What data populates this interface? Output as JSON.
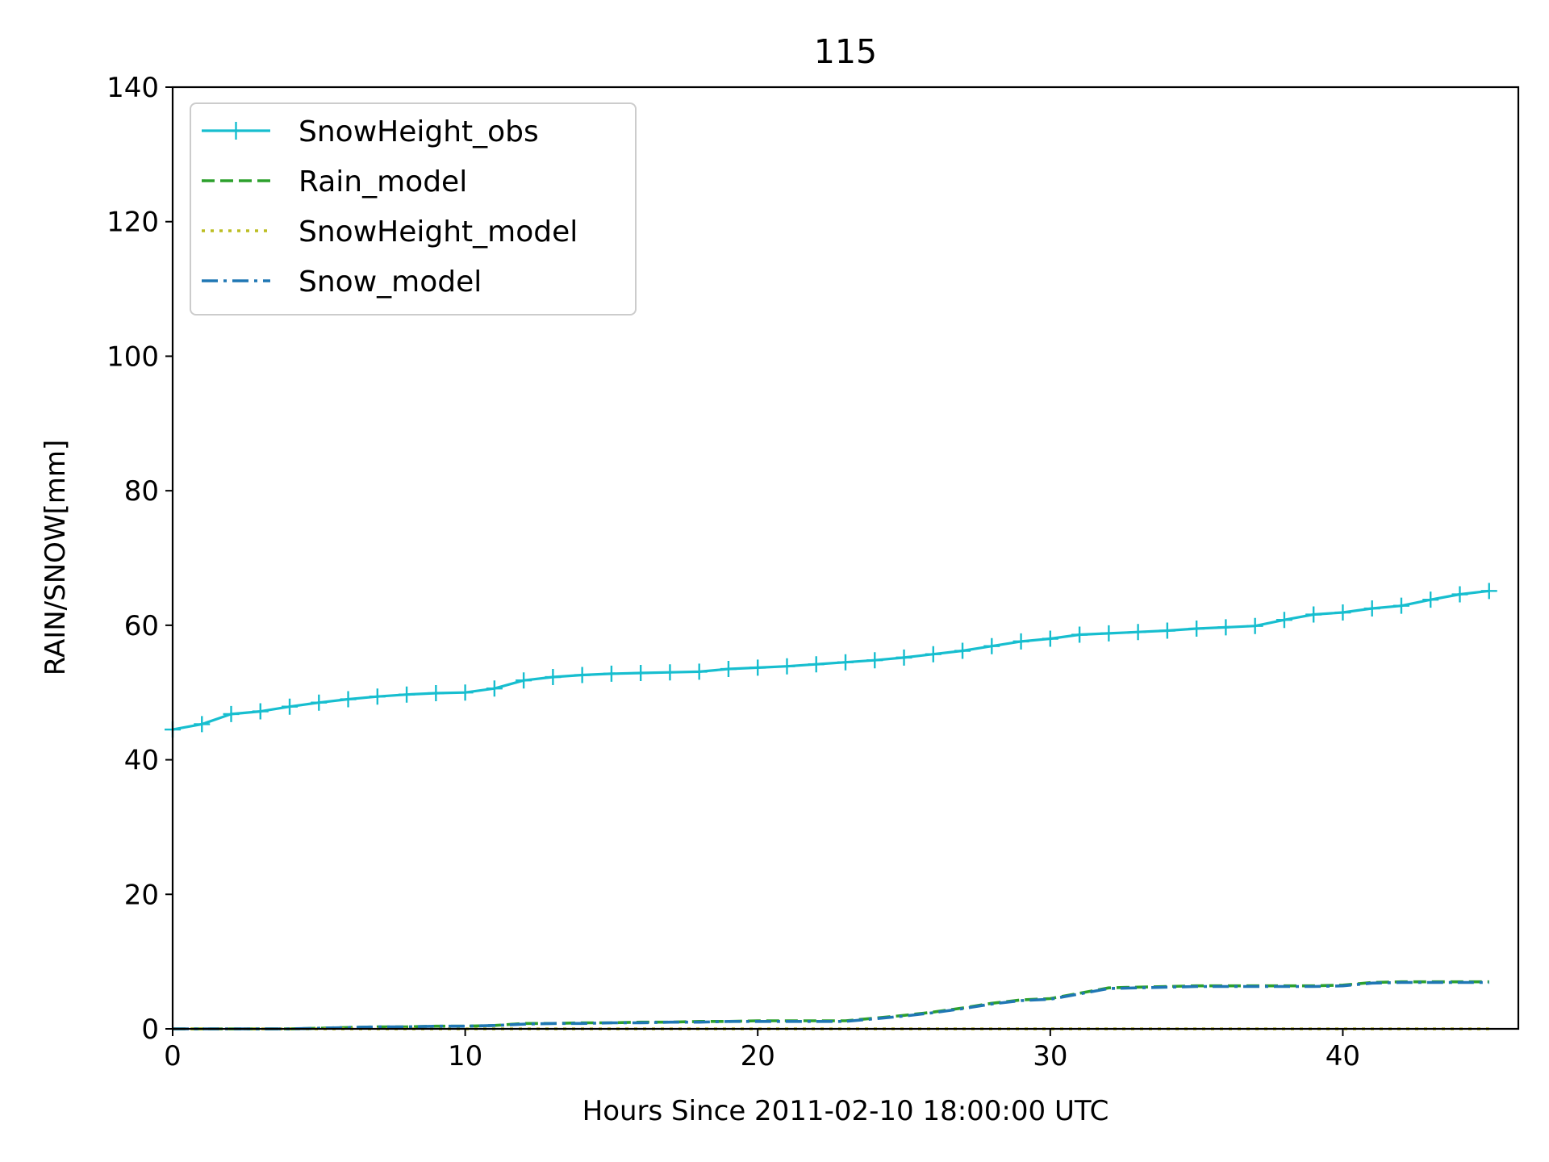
{
  "chart_data": {
    "type": "line",
    "title": "115",
    "xlabel": "Hours Since 2011-02-10 18:00:00 UTC",
    "ylabel": "RAIN/SNOW[mm]",
    "xlim": [
      0,
      46
    ],
    "ylim": [
      0,
      140
    ],
    "xticks": [
      0,
      10,
      20,
      30,
      40
    ],
    "yticks": [
      0,
      20,
      40,
      60,
      80,
      100,
      120,
      140
    ],
    "grid": false,
    "legend_position": "top-left",
    "series": [
      {
        "name": "SnowHeight_obs",
        "color": "#17becf",
        "linestyle": "solid",
        "marker": "+",
        "x": [
          0,
          1,
          2,
          3,
          4,
          5,
          6,
          7,
          8,
          9,
          10,
          11,
          12,
          13,
          14,
          15,
          16,
          17,
          18,
          19,
          20,
          21,
          22,
          23,
          24,
          25,
          26,
          27,
          28,
          29,
          30,
          31,
          32,
          33,
          34,
          35,
          36,
          37,
          38,
          39,
          40,
          41,
          42,
          43,
          44,
          45
        ],
        "y": [
          44.5,
          45.3,
          46.8,
          47.2,
          47.9,
          48.5,
          49.0,
          49.4,
          49.7,
          49.9,
          50.0,
          50.6,
          51.8,
          52.3,
          52.6,
          52.8,
          52.9,
          53.0,
          53.1,
          53.5,
          53.7,
          53.9,
          54.2,
          54.5,
          54.8,
          55.2,
          55.7,
          56.2,
          56.9,
          57.6,
          58.0,
          58.6,
          58.8,
          59.0,
          59.2,
          59.5,
          59.7,
          59.9,
          60.8,
          61.6,
          61.9,
          62.5,
          62.9,
          63.8,
          64.6,
          65.1
        ]
      },
      {
        "name": "Rain_model",
        "color": "#2ca02c",
        "linestyle": "dashed",
        "x": [
          0,
          1,
          2,
          3,
          4,
          5,
          6,
          7,
          8,
          9,
          10,
          11,
          12,
          13,
          14,
          15,
          16,
          17,
          18,
          19,
          20,
          21,
          22,
          23,
          24,
          25,
          26,
          27,
          28,
          29,
          30,
          31,
          32,
          33,
          34,
          35,
          36,
          37,
          38,
          39,
          40,
          41,
          42,
          43,
          44,
          45
        ],
        "y": [
          0.0,
          0.0,
          0.0,
          0.0,
          0.0,
          0.1,
          0.2,
          0.3,
          0.3,
          0.4,
          0.4,
          0.5,
          0.8,
          0.8,
          0.9,
          0.9,
          1.0,
          1.0,
          1.1,
          1.1,
          1.2,
          1.2,
          1.2,
          1.2,
          1.6,
          2.0,
          2.5,
          3.1,
          3.8,
          4.3,
          4.5,
          5.3,
          6.1,
          6.2,
          6.3,
          6.4,
          6.4,
          6.4,
          6.4,
          6.4,
          6.5,
          6.9,
          7.0,
          7.0,
          7.0,
          7.0
        ]
      },
      {
        "name": "SnowHeight_model",
        "color": "#bcbd22",
        "linestyle": "dotted",
        "x": [
          0,
          45
        ],
        "y": [
          0.0,
          0.0
        ]
      },
      {
        "name": "Snow_model",
        "color": "#1f77b4",
        "linestyle": "dashdot",
        "x": [
          0,
          1,
          2,
          3,
          4,
          5,
          6,
          7,
          8,
          9,
          10,
          11,
          12,
          13,
          14,
          15,
          16,
          17,
          18,
          19,
          20,
          21,
          22,
          23,
          24,
          25,
          26,
          27,
          28,
          29,
          30,
          31,
          32,
          33,
          34,
          35,
          36,
          37,
          38,
          39,
          40,
          41,
          42,
          43,
          44,
          45
        ],
        "y": [
          0.0,
          0.0,
          0.0,
          0.0,
          0.0,
          0.1,
          0.2,
          0.3,
          0.3,
          0.4,
          0.4,
          0.5,
          0.7,
          0.8,
          0.8,
          0.9,
          0.9,
          1.0,
          1.0,
          1.1,
          1.1,
          1.1,
          1.1,
          1.1,
          1.5,
          1.9,
          2.4,
          3.0,
          3.7,
          4.2,
          4.4,
          5.2,
          6.0,
          6.1,
          6.2,
          6.3,
          6.3,
          6.3,
          6.3,
          6.3,
          6.4,
          6.8,
          6.9,
          6.9,
          6.9,
          6.9
        ]
      }
    ]
  }
}
